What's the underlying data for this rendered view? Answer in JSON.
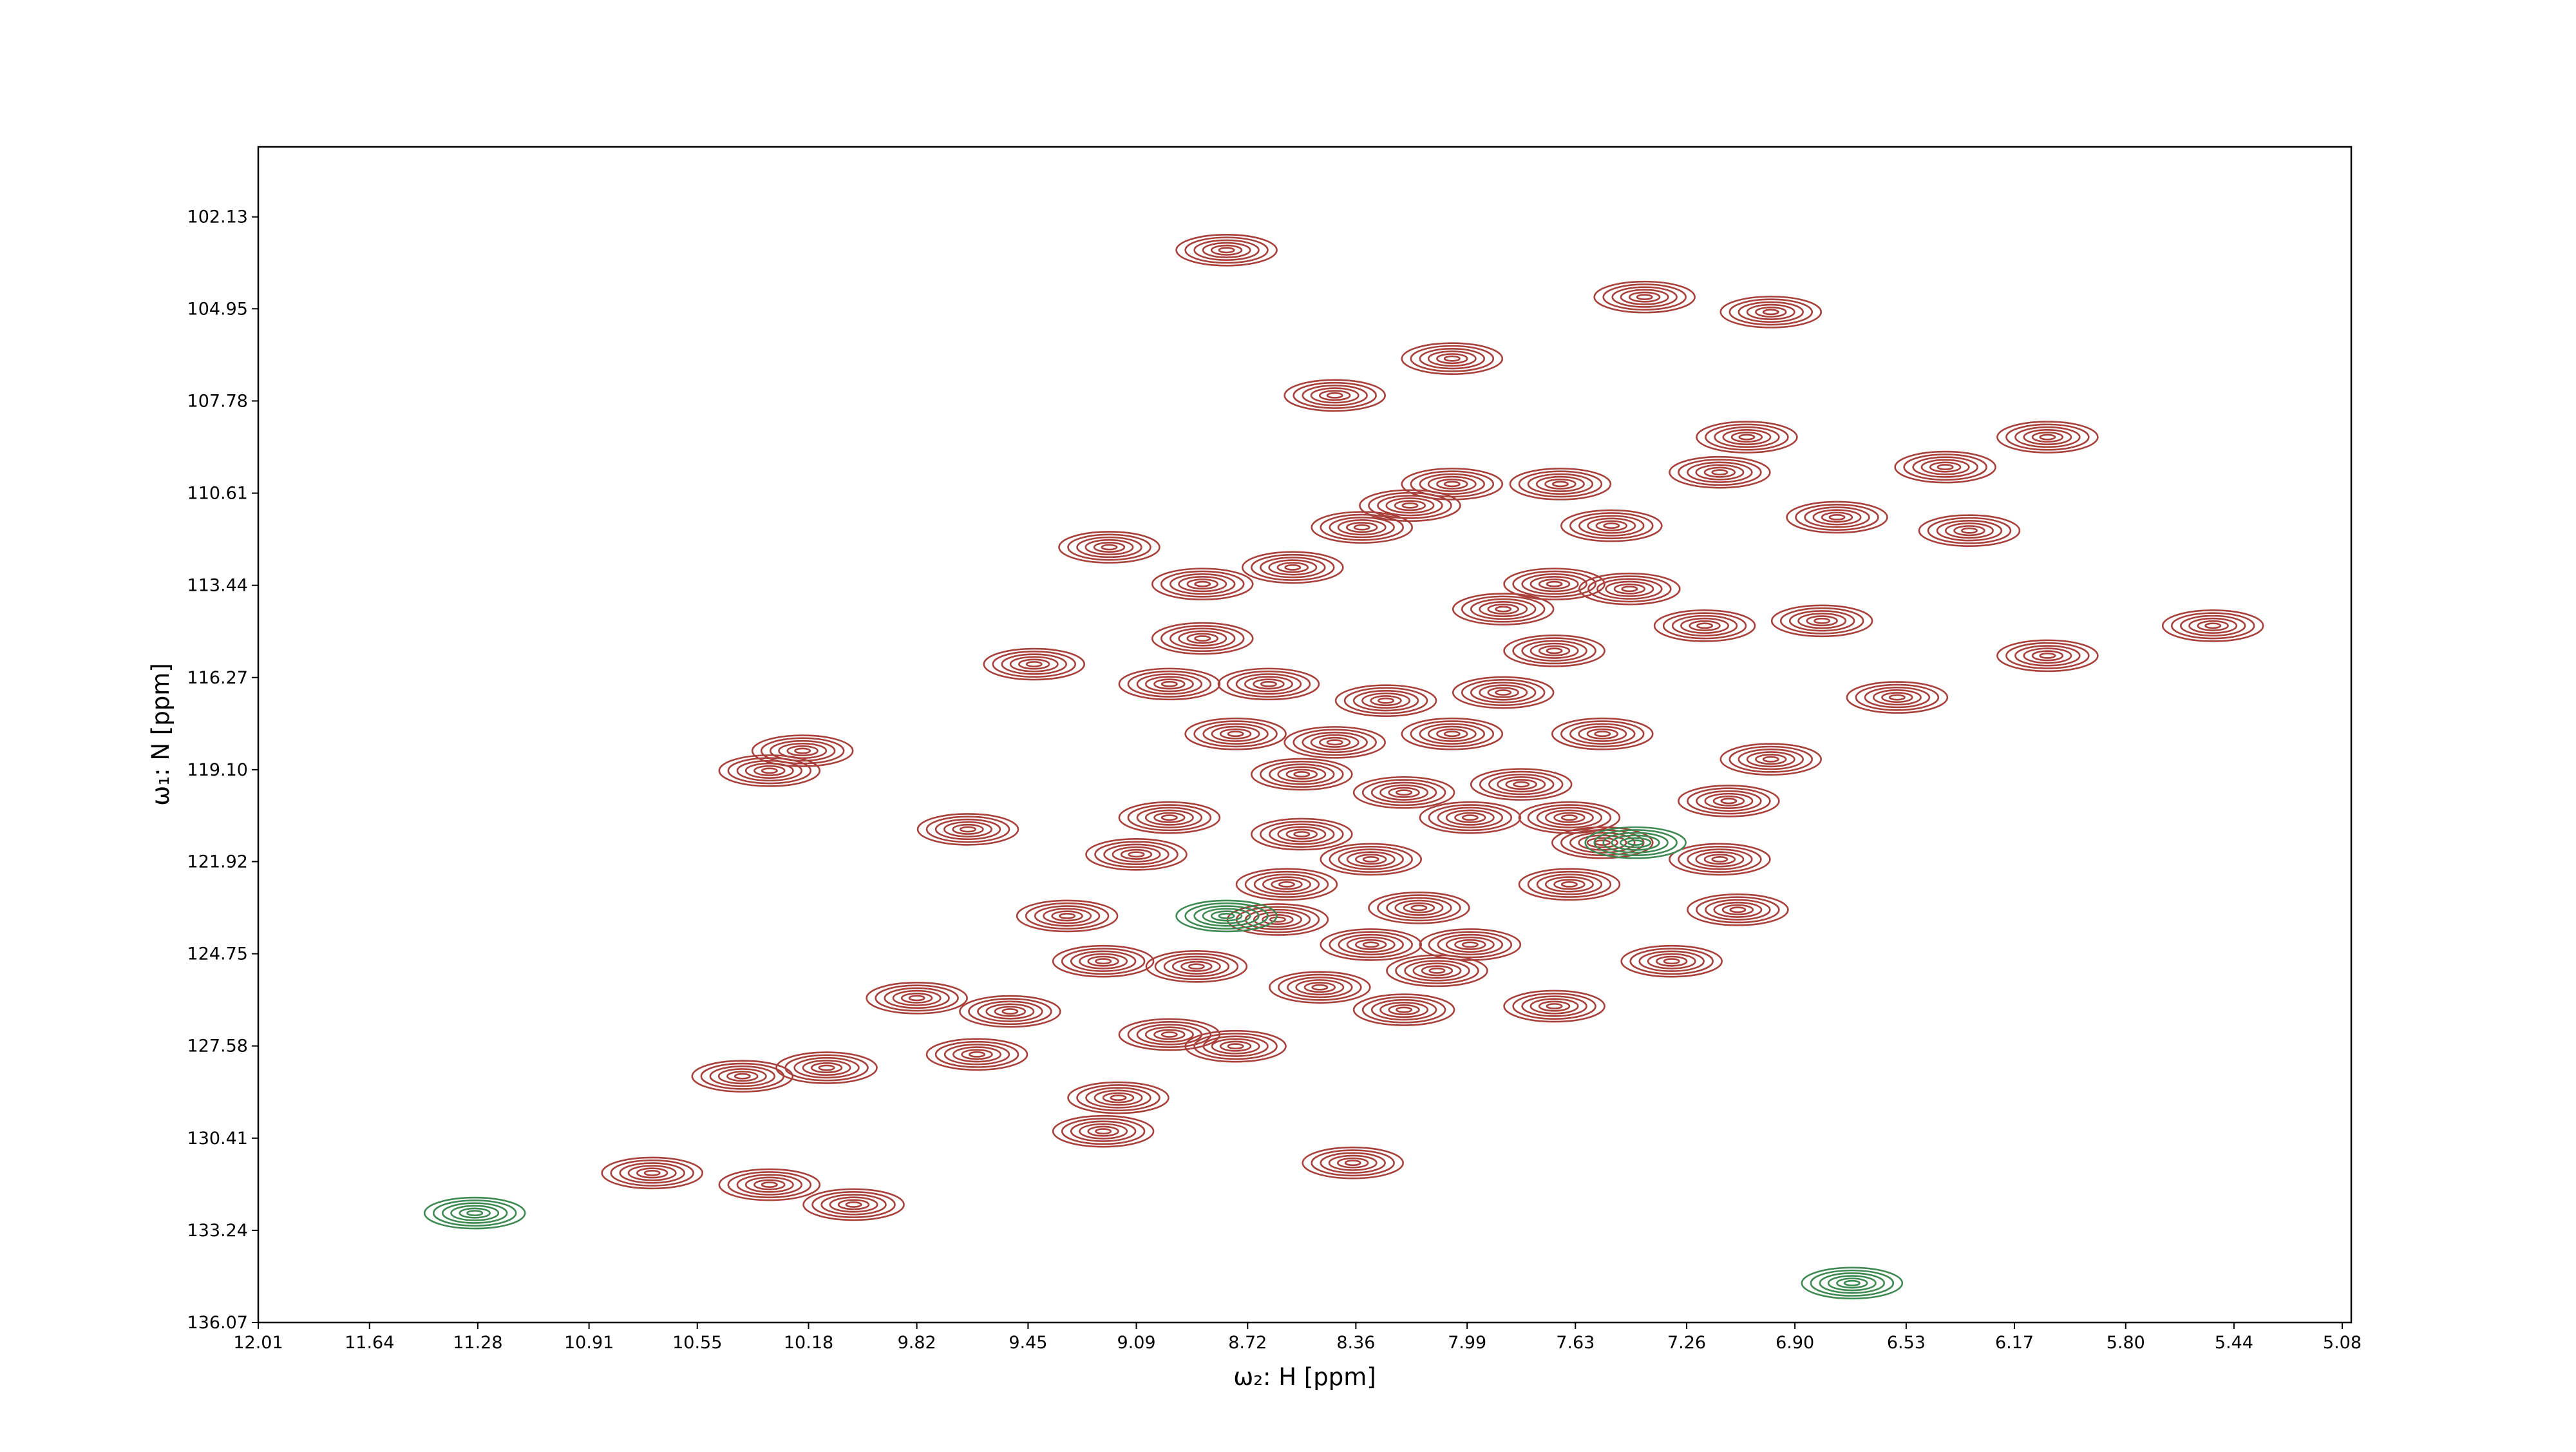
{
  "chart_data": {
    "type": "contour",
    "xlabel": "ω₂: H [ppm]",
    "ylabel": "ω₁: N [ppm]",
    "xlim": [
      12.01,
      5.05
    ],
    "ylim": [
      136.07,
      99.98
    ],
    "xticks": [
      12.01,
      11.64,
      11.28,
      10.91,
      10.55,
      10.18,
      9.82,
      9.45,
      9.09,
      8.72,
      8.36,
      7.99,
      7.63,
      7.26,
      {
        "value": 6.9,
        "label": "6.90"
      },
      6.53,
      6.17,
      {
        "value": 5.8,
        "label": "5.80"
      },
      5.44,
      5.08
    ],
    "yticks": [
      102.13,
      104.95,
      107.78,
      110.61,
      113.44,
      116.27,
      {
        "value": 119.1,
        "label": "119.10"
      },
      121.92,
      124.75,
      127.58,
      130.41,
      133.24,
      136.07
    ],
    "series": [
      {
        "color": "#a8403b",
        "x": [
          8.79,
          7.4,
          6.98,
          8.04,
          8.43,
          7.06,
          6.06,
          6.4,
          7.15,
          8.04,
          8.18,
          7.68,
          7.51,
          6.76,
          6.32,
          8.34,
          9.18,
          8.87,
          8.57,
          7.7,
          7.45,
          7.87,
          7.2,
          6.81,
          8.87,
          7.7,
          5.51,
          6.06,
          9.43,
          8.98,
          8.65,
          8.26,
          7.87,
          6.56,
          8.76,
          8.43,
          8.04,
          7.54,
          6.98,
          10.2,
          10.31,
          8.54,
          8.2,
          7.81,
          7.12,
          9.65,
          8.98,
          8.54,
          7.98,
          7.65,
          8.31,
          7.54,
          7.15,
          9.09,
          8.59,
          7.65,
          7.09,
          9.32,
          8.62,
          8.15,
          9.2,
          8.89,
          8.31,
          7.98,
          7.31,
          9.82,
          9.51,
          8.48,
          8.09,
          7.7,
          8.2,
          8.98,
          8.76,
          9.62,
          10.4,
          10.12,
          9.15,
          9.2,
          10.7,
          10.31,
          10.03,
          8.37
        ],
        "values": [
          103.15,
          104.59,
          105.05,
          106.48,
          107.61,
          108.89,
          108.89,
          109.81,
          109.97,
          110.33,
          110.99,
          110.33,
          111.61,
          111.35,
          111.76,
          111.66,
          112.27,
          113.4,
          112.89,
          113.4,
          113.55,
          114.17,
          114.68,
          114.53,
          115.07,
          115.45,
          114.68,
          115.6,
          115.86,
          116.47,
          116.47,
          116.98,
          116.73,
          116.88,
          118.0,
          118.26,
          118.0,
          118.0,
          118.78,
          118.52,
          119.13,
          119.24,
          119.8,
          119.55,
          120.06,
          120.93,
          120.57,
          121.08,
          120.57,
          120.57,
          121.85,
          121.34,
          121.85,
          121.7,
          122.62,
          122.62,
          123.4,
          123.59,
          123.7,
          123.34,
          124.98,
          125.14,
          124.47,
          124.47,
          124.98,
          126.11,
          126.52,
          125.78,
          125.27,
          126.36,
          126.47,
          127.23,
          127.59,
          127.84,
          128.51,
          128.25,
          129.17,
          130.2,
          131.48,
          131.84,
          132.45,
          131.17
        ]
      },
      {
        "color": "#3e8a52",
        "x": [
          11.29,
          6.71,
          8.79,
          7.43
        ],
        "values": [
          132.71,
          134.86,
          123.59,
          121.34
        ]
      }
    ]
  }
}
